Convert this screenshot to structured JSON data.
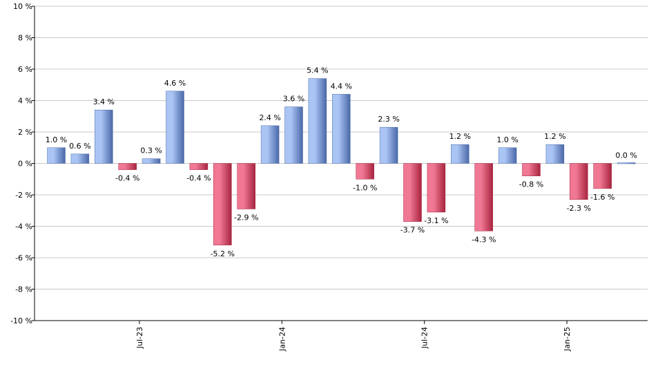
{
  "chart_data": {
    "type": "bar",
    "title": "",
    "xlabel": "",
    "ylabel": "",
    "ylim": [
      -10,
      10
    ],
    "y_ticks": [
      10,
      8,
      6,
      4,
      2,
      0,
      -2,
      -4,
      -6,
      -8,
      -10
    ],
    "y_tick_suffix": " %",
    "grid": true,
    "legend": "none",
    "x_tick_labels": [
      {
        "label": "Jul-23",
        "at_index": 3.5
      },
      {
        "label": "Jan-24",
        "at_index": 9.5
      },
      {
        "label": "Jul-24",
        "at_index": 15.5
      },
      {
        "label": "Jan-25",
        "at_index": 21.5
      }
    ],
    "values": [
      1.0,
      0.6,
      3.4,
      -0.4,
      0.3,
      4.6,
      -0.4,
      -5.2,
      -2.9,
      2.4,
      3.6,
      5.4,
      4.4,
      -1.0,
      2.3,
      -3.7,
      -3.1,
      1.2,
      -4.3,
      1.0,
      -0.8,
      1.2,
      -2.3,
      -1.6,
      0.0
    ],
    "labels": [
      "1.0 %",
      "0.6 %",
      "3.4 %",
      "-0.4 %",
      "0.3 %",
      "4.6 %",
      "-0.4 %",
      "-5.2 %",
      "-2.9 %",
      "2.4 %",
      "3.6 %",
      "5.4 %",
      "4.4 %",
      "-1.0 %",
      "2.3 %",
      "-3.7 %",
      "-3.1 %",
      "1.2 %",
      "-4.3 %",
      "1.0 %",
      "-0.8 %",
      "1.2 %",
      "-2.3 %",
      "-1.6 %",
      "0.0 %"
    ],
    "colors": {
      "positive_light": "#aac4f4",
      "positive_dark": "#4a68a8",
      "negative_light": "#f07894",
      "negative_dark": "#a8243f",
      "grid": "#c8c8c8",
      "axis": "#000000"
    }
  }
}
